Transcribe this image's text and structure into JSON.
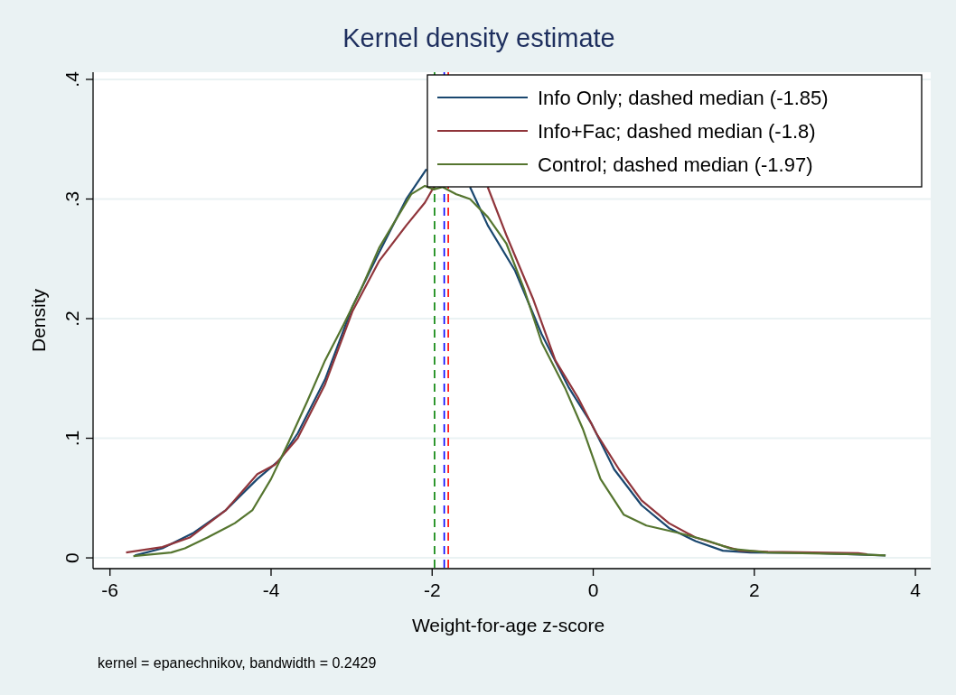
{
  "chart_data": {
    "type": "line",
    "title": "Kernel density estimate",
    "xlabel": "Weight-for-age z-score",
    "ylabel": "Density",
    "annotations": [
      "kernel = epanechnikov, bandwidth = 0.2429"
    ],
    "xlim": [
      -6.21,
      4.19
    ],
    "xticks": [
      -6,
      -4,
      -2,
      0,
      2,
      4
    ],
    "ylim": [
      -0.009,
      0.406
    ],
    "yticks": [
      {
        "value": 0,
        "label": "0"
      },
      {
        "value": 0.1,
        "label": ".1"
      },
      {
        "value": 0.2,
        "label": ".2"
      },
      {
        "value": 0.3,
        "label": ".3"
      },
      {
        "value": 0.4,
        "label": ".4"
      }
    ],
    "grid": "y",
    "legend": "top right",
    "line_style": "solid",
    "series": [
      {
        "name": "Info Only; dashed median (-1.85)",
        "color": "#1a476f",
        "x": [
          -5.69,
          -5.35,
          -4.96,
          -4.56,
          -4.17,
          -3.89,
          -3.67,
          -3.33,
          -2.99,
          -2.66,
          -2.32,
          -2.07,
          -1.8,
          -1.53,
          -1.31,
          -0.97,
          -0.64,
          -0.3,
          -0.02,
          0.26,
          0.6,
          0.94,
          1.27,
          1.61,
          1.95,
          2.73,
          3.63
        ],
        "values": [
          0.002,
          0.008,
          0.021,
          0.04,
          0.066,
          0.082,
          0.104,
          0.149,
          0.21,
          0.255,
          0.3,
          0.325,
          null,
          0.31,
          0.278,
          0.24,
          0.187,
          0.142,
          0.112,
          0.074,
          0.044,
          0.025,
          0.014,
          0.006,
          0.0045,
          0.004,
          0.002
        ]
      },
      {
        "name": "Info+Fac; dashed median (-1.8)",
        "color": "#90353b",
        "x": [
          -5.8,
          -5.35,
          -5.01,
          -4.56,
          -4.17,
          -3.95,
          -3.67,
          -3.33,
          -2.99,
          -2.66,
          -2.32,
          -2.09,
          -1.98,
          -1.6,
          -1.31,
          -1.08,
          -0.75,
          -0.47,
          -0.19,
          0.04,
          0.32,
          0.6,
          0.94,
          1.27,
          1.61,
          1.83,
          2.17,
          3.29,
          3.4
        ],
        "values": [
          0.0045,
          0.009,
          0.017,
          0.04,
          0.07,
          0.078,
          0.1,
          0.145,
          0.206,
          0.248,
          0.278,
          0.297,
          0.31,
          null,
          0.31,
          0.27,
          0.217,
          0.165,
          0.134,
          0.104,
          0.074,
          0.048,
          0.029,
          0.017,
          0.01,
          0.006,
          0.005,
          0.004,
          0.003
        ]
      },
      {
        "name": "Control; dashed median (-1.97)",
        "color": "#55752f",
        "x": [
          -5.71,
          -5.24,
          -5.07,
          -4.79,
          -4.45,
          -4.23,
          -4.0,
          -3.78,
          -3.55,
          -3.33,
          -3.1,
          -2.88,
          -2.66,
          -2.43,
          -2.26,
          -2.09,
          -1.98,
          -1.87,
          -1.7,
          -1.53,
          -1.31,
          -1.08,
          -0.86,
          -0.64,
          -0.35,
          -0.13,
          0.09,
          0.38,
          0.66,
          1.05,
          1.39,
          1.72,
          2.17,
          3.29,
          3.63
        ],
        "values": [
          0.0015,
          0.0045,
          0.008,
          0.017,
          0.029,
          0.04,
          0.066,
          0.097,
          0.131,
          0.165,
          0.195,
          0.225,
          0.259,
          0.285,
          0.304,
          0.311,
          0.308,
          0.31,
          0.304,
          0.3,
          0.285,
          0.263,
          0.225,
          0.18,
          0.142,
          0.108,
          0.066,
          0.036,
          0.027,
          0.021,
          0.015,
          0.0075,
          0.0045,
          0.003,
          0.002
        ]
      }
    ],
    "ref_lines": [
      {
        "axis": "x",
        "value": -1.85,
        "color": "#0000ff",
        "line_style": "dashed"
      },
      {
        "axis": "x",
        "value": -1.8,
        "color": "#ff0000",
        "line_style": "dashed"
      },
      {
        "axis": "x",
        "value": -1.97,
        "color": "#008000",
        "line_style": "dashed"
      }
    ]
  }
}
